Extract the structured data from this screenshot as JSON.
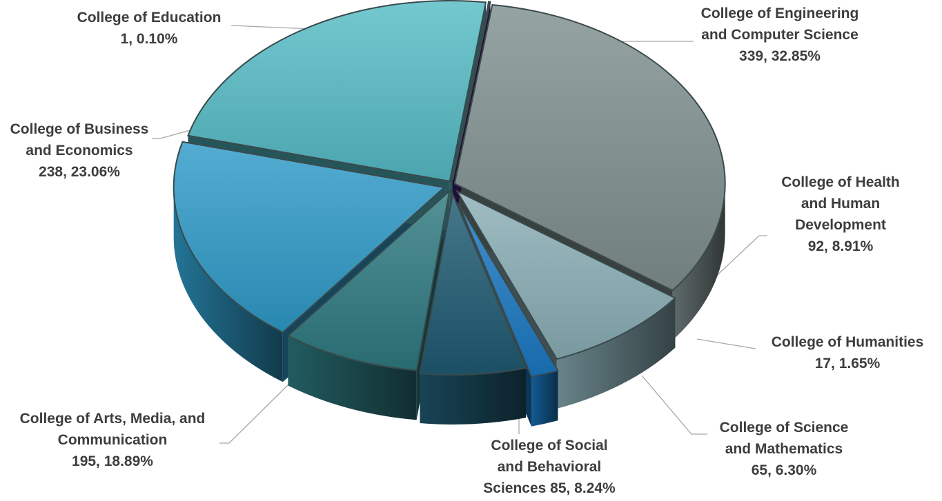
{
  "chart_data": {
    "type": "pie",
    "style": "3d-exploded",
    "title": "",
    "slices": [
      {
        "name": "College of Engineering and Computer Science",
        "label_lines": [
          "College of Engineering",
          "and Computer Science",
          "339, 32.85%"
        ],
        "value": 339,
        "percent": 32.85,
        "color": "#7f8f8f"
      },
      {
        "name": "College of Health and Human Development",
        "label_lines": [
          "College of Health",
          "and Human",
          "Development",
          "92, 8.91%"
        ],
        "value": 92,
        "percent": 8.91,
        "color": "#8aaeb6"
      },
      {
        "name": "College of Humanities",
        "label_lines": [
          "College of Humanities",
          "17, 1.65%"
        ],
        "value": 17,
        "percent": 1.65,
        "color": "#1a78c2"
      },
      {
        "name": "College of Science and Mathematics",
        "label_lines": [
          "College of Science",
          "and Mathematics",
          "65, 6.30%"
        ],
        "value": 65,
        "percent": 6.3,
        "color": "#1f5a72"
      },
      {
        "name": "College of Social and Behavioral Sciences",
        "label_lines": [
          "College of Social",
          "and Behavioral",
          "Sciences 85, 8.24%"
        ],
        "value": 85,
        "percent": 8.24,
        "color": "#2d7a80"
      },
      {
        "name": "College of Arts, Media, and Communication",
        "label_lines": [
          "College of Arts, Media, and",
          "Communication",
          "195, 18.89%"
        ],
        "value": 195,
        "percent": 18.89,
        "color": "#2f9ac8"
      },
      {
        "name": "College of Business and Economics",
        "label_lines": [
          "College of Business",
          "and Economics",
          "238, 23.06%"
        ],
        "value": 238,
        "percent": 23.06,
        "color": "#55bcc6"
      },
      {
        "name": "College of Education",
        "label_lines": [
          "College of Education",
          "1, 0.10%"
        ],
        "value": 1,
        "percent": 0.1,
        "color": "#4a1f7a"
      }
    ],
    "legend": "none"
  }
}
